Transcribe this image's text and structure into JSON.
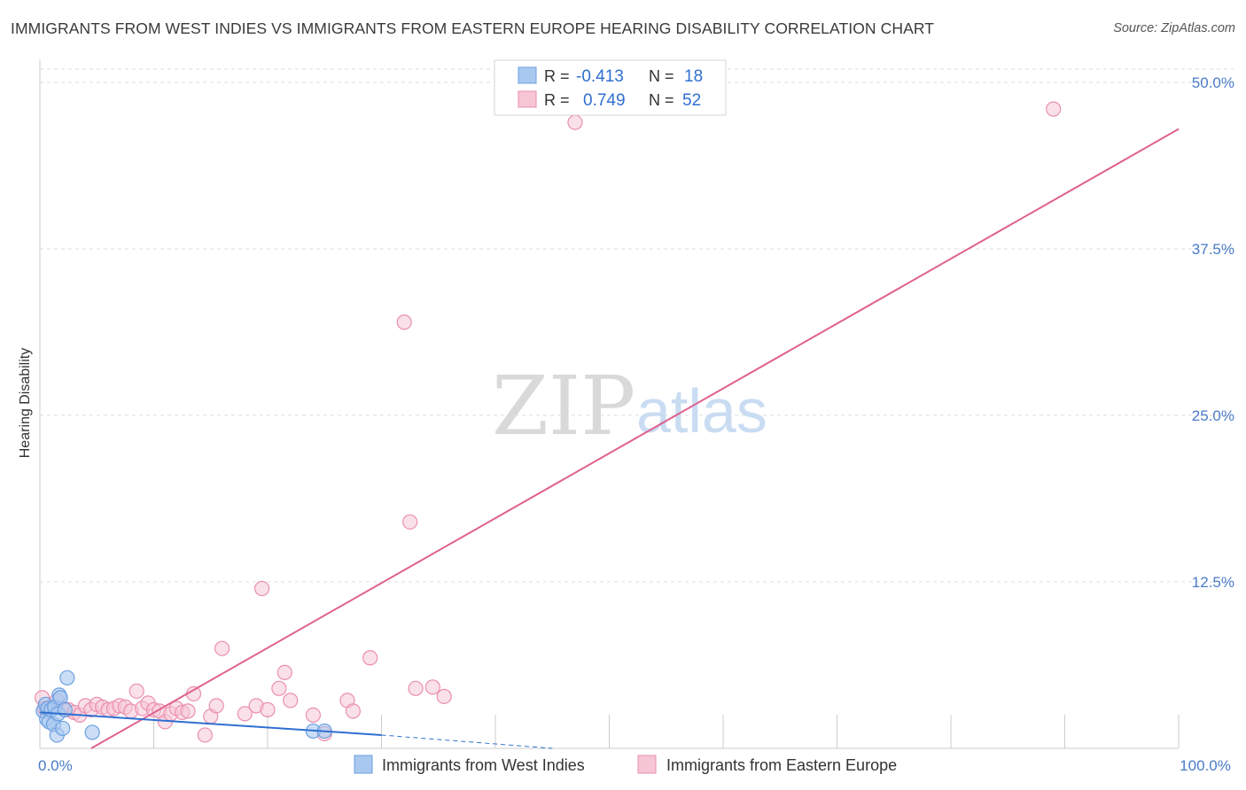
{
  "header": {
    "title": "IMMIGRANTS FROM WEST INDIES VS IMMIGRANTS FROM EASTERN EUROPE HEARING DISABILITY CORRELATION CHART",
    "source": "Source: ZipAtlas.com"
  },
  "watermark": {
    "zip": "ZIP",
    "atlas": "atlas"
  },
  "stats_box": {
    "rows": [
      {
        "r_label": "R = ",
        "r_value": "-0.413",
        "n_label": "N = ",
        "n_value": "18",
        "color": "#a9c8f0"
      },
      {
        "r_label": "R = ",
        "r_value": "0.749",
        "n_label": "N = ",
        "n_value": "52",
        "color": "#f6b8cc"
      }
    ]
  },
  "colors": {
    "west_indies_fill": "#a9c8f0",
    "west_indies_stroke": "#6b9fe0",
    "west_indies_line": "#2f6fd0",
    "eastern_europe_fill": "#f6c6d5",
    "eastern_europe_stroke": "#ea8fae",
    "eastern_europe_line": "#e0608e",
    "tick_label": "#4a7cc9",
    "grid": "#dddddd"
  },
  "chart_data": {
    "type": "scatter",
    "title": "IMMIGRANTS FROM WEST INDIES VS IMMIGRANTS FROM EASTERN EUROPE HEARING DISABILITY CORRELATION CHART",
    "xlabel": "",
    "ylabel": "Hearing Disability",
    "xlim": [
      0,
      100
    ],
    "ylim": [
      0,
      51
    ],
    "x_tick_labels": [
      {
        "value": 0,
        "label": "0.0%"
      },
      {
        "value": 100,
        "label": "100.0%"
      }
    ],
    "y_ticks": [
      {
        "value": 12.5,
        "label": "12.5%"
      },
      {
        "value": 25.0,
        "label": "25.0%"
      },
      {
        "value": 37.5,
        "label": "37.5%"
      },
      {
        "value": 50.0,
        "label": "50.0%"
      }
    ],
    "x_minor_ticks": [
      10,
      20,
      30,
      40,
      50,
      60,
      70,
      80,
      90,
      100
    ],
    "grid": true,
    "legend_position": "bottom",
    "series": [
      {
        "name": "Immigrants from West Indies",
        "R": -0.413,
        "N": 18,
        "points": [
          [
            0.3,
            2.8
          ],
          [
            0.5,
            3.3
          ],
          [
            0.6,
            2.2
          ],
          [
            0.7,
            3.0
          ],
          [
            0.8,
            2.0
          ],
          [
            1.0,
            2.9
          ],
          [
            1.2,
            1.8
          ],
          [
            1.3,
            3.1
          ],
          [
            1.5,
            1.0
          ],
          [
            1.6,
            2.6
          ],
          [
            1.7,
            4.0
          ],
          [
            1.8,
            3.8
          ],
          [
            2.0,
            1.5
          ],
          [
            2.2,
            2.9
          ],
          [
            2.4,
            5.3
          ],
          [
            4.6,
            1.2
          ],
          [
            24.0,
            1.3
          ],
          [
            25.0,
            1.3
          ]
        ],
        "trend": {
          "x_start": 0,
          "y_start": 2.7,
          "x_end": 30,
          "y_end": 1.0,
          "dashed_to_x": 45,
          "dashed_to_y": 0.0
        }
      },
      {
        "name": "Immigrants from Eastern Europe",
        "R": 0.749,
        "N": 52,
        "points": [
          [
            0.2,
            3.8
          ],
          [
            0.4,
            3.0
          ],
          [
            0.6,
            2.8
          ],
          [
            1.0,
            3.1
          ],
          [
            1.5,
            3.6
          ],
          [
            2.0,
            3.0
          ],
          [
            2.5,
            2.9
          ],
          [
            3.0,
            2.7
          ],
          [
            3.5,
            2.5
          ],
          [
            4.0,
            3.2
          ],
          [
            4.5,
            2.9
          ],
          [
            5.0,
            3.3
          ],
          [
            5.5,
            3.1
          ],
          [
            6.0,
            2.9
          ],
          [
            6.5,
            3.0
          ],
          [
            7.0,
            3.2
          ],
          [
            7.5,
            3.1
          ],
          [
            8.0,
            2.8
          ],
          [
            8.5,
            4.3
          ],
          [
            9.0,
            3.0
          ],
          [
            9.5,
            3.4
          ],
          [
            10.0,
            2.9
          ],
          [
            10.5,
            2.8
          ],
          [
            11.0,
            2.0
          ],
          [
            11.5,
            2.6
          ],
          [
            12.0,
            3.0
          ],
          [
            12.5,
            2.7
          ],
          [
            13.0,
            2.8
          ],
          [
            13.5,
            4.1
          ],
          [
            14.5,
            1.0
          ],
          [
            15.0,
            2.4
          ],
          [
            15.5,
            3.2
          ],
          [
            16.0,
            7.5
          ],
          [
            18.0,
            2.6
          ],
          [
            19.0,
            3.2
          ],
          [
            19.5,
            12.0
          ],
          [
            20.0,
            2.9
          ],
          [
            21.0,
            4.5
          ],
          [
            21.5,
            5.7
          ],
          [
            22.0,
            3.6
          ],
          [
            24.0,
            2.5
          ],
          [
            25.0,
            1.1
          ],
          [
            27.0,
            3.6
          ],
          [
            27.5,
            2.8
          ],
          [
            29.0,
            6.8
          ],
          [
            32.0,
            32.0
          ],
          [
            32.5,
            17.0
          ],
          [
            33.0,
            4.5
          ],
          [
            34.5,
            4.6
          ],
          [
            35.5,
            3.9
          ],
          [
            47.0,
            47.0
          ],
          [
            89.0,
            48.0
          ]
        ],
        "trend": {
          "x_start": 4.5,
          "y_start": 0.0,
          "x_end": 100,
          "y_end": 46.5
        }
      }
    ]
  }
}
